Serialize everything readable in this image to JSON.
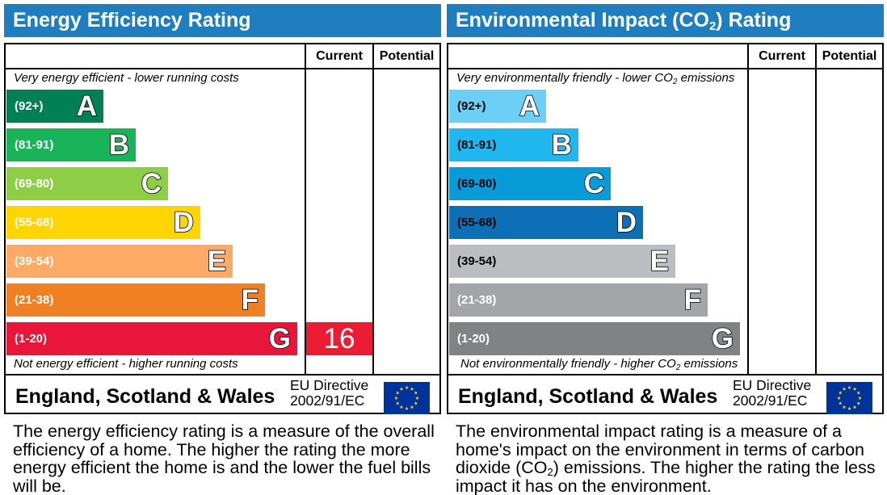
{
  "energy": {
    "title": "Energy Efficiency Rating",
    "col_current": "Current",
    "col_potential": "Potential",
    "note_top": "Very energy efficient - lower running costs",
    "note_bottom": "Not energy efficient - higher running costs",
    "bands": [
      {
        "range": "(92+)",
        "letter": "A",
        "color": "#008054"
      },
      {
        "range": "(81-91)",
        "letter": "B",
        "color": "#19b459"
      },
      {
        "range": "(69-80)",
        "letter": "C",
        "color": "#8dce46"
      },
      {
        "range": "(55-68)",
        "letter": "D",
        "color": "#ffd500"
      },
      {
        "range": "(39-54)",
        "letter": "E",
        "color": "#fcaa65"
      },
      {
        "range": "(21-38)",
        "letter": "F",
        "color": "#ef8023"
      },
      {
        "range": "(1-20)",
        "letter": "G",
        "color": "#e9153b"
      }
    ],
    "current_rating": "16",
    "current_band": "G",
    "current_color": "#ec1c35",
    "footer": "England, Scotland & Wales",
    "directive_line1": "EU Directive",
    "directive_line2": "2002/91/EC",
    "description": "The energy efficiency rating is a measure of the overall efficiency of a home. The higher the rating the more energy efficient the home is and the lower the fuel bills will be."
  },
  "environment": {
    "title_before": "Environmental Impact (CO",
    "title_sub": "2",
    "title_after": ") Rating",
    "col_current": "Current",
    "col_potential": "Potential",
    "note_top_before": "Very environmentally friendly - lower CO",
    "note_top_sub": "2",
    "note_top_after": " emissions",
    "note_bottom_before": "Not environmentally friendly - higher CO",
    "note_bottom_sub": "2",
    "note_bottom_after": " emissions",
    "bands": [
      {
        "range": "(92+)",
        "letter": "A",
        "color": "#6ccff6"
      },
      {
        "range": "(81-91)",
        "letter": "B",
        "color": "#20b7f0"
      },
      {
        "range": "(69-80)",
        "letter": "C",
        "color": "#099bd8"
      },
      {
        "range": "(55-68)",
        "letter": "D",
        "color": "#0d6fb6"
      },
      {
        "range": "(39-54)",
        "letter": "E",
        "color": "#bbbdc0"
      },
      {
        "range": "(21-38)",
        "letter": "F",
        "color": "#a3a5a8"
      },
      {
        "range": "(1-20)",
        "letter": "G",
        "color": "#808285"
      }
    ],
    "footer": "England, Scotland & Wales",
    "directive_line1": "EU Directive",
    "directive_line2": "2002/91/EC",
    "desc_before": "The environmental impact rating is a measure of a home's impact on the environment in terms of carbon dioxide (CO",
    "desc_sub": "2",
    "desc_after": ") emissions. The higher the rating the less impact it has on the environment."
  },
  "eu_flag": {
    "background": "#003399",
    "star_color": "#ffdd00",
    "icon": "eu-flag-icon"
  }
}
